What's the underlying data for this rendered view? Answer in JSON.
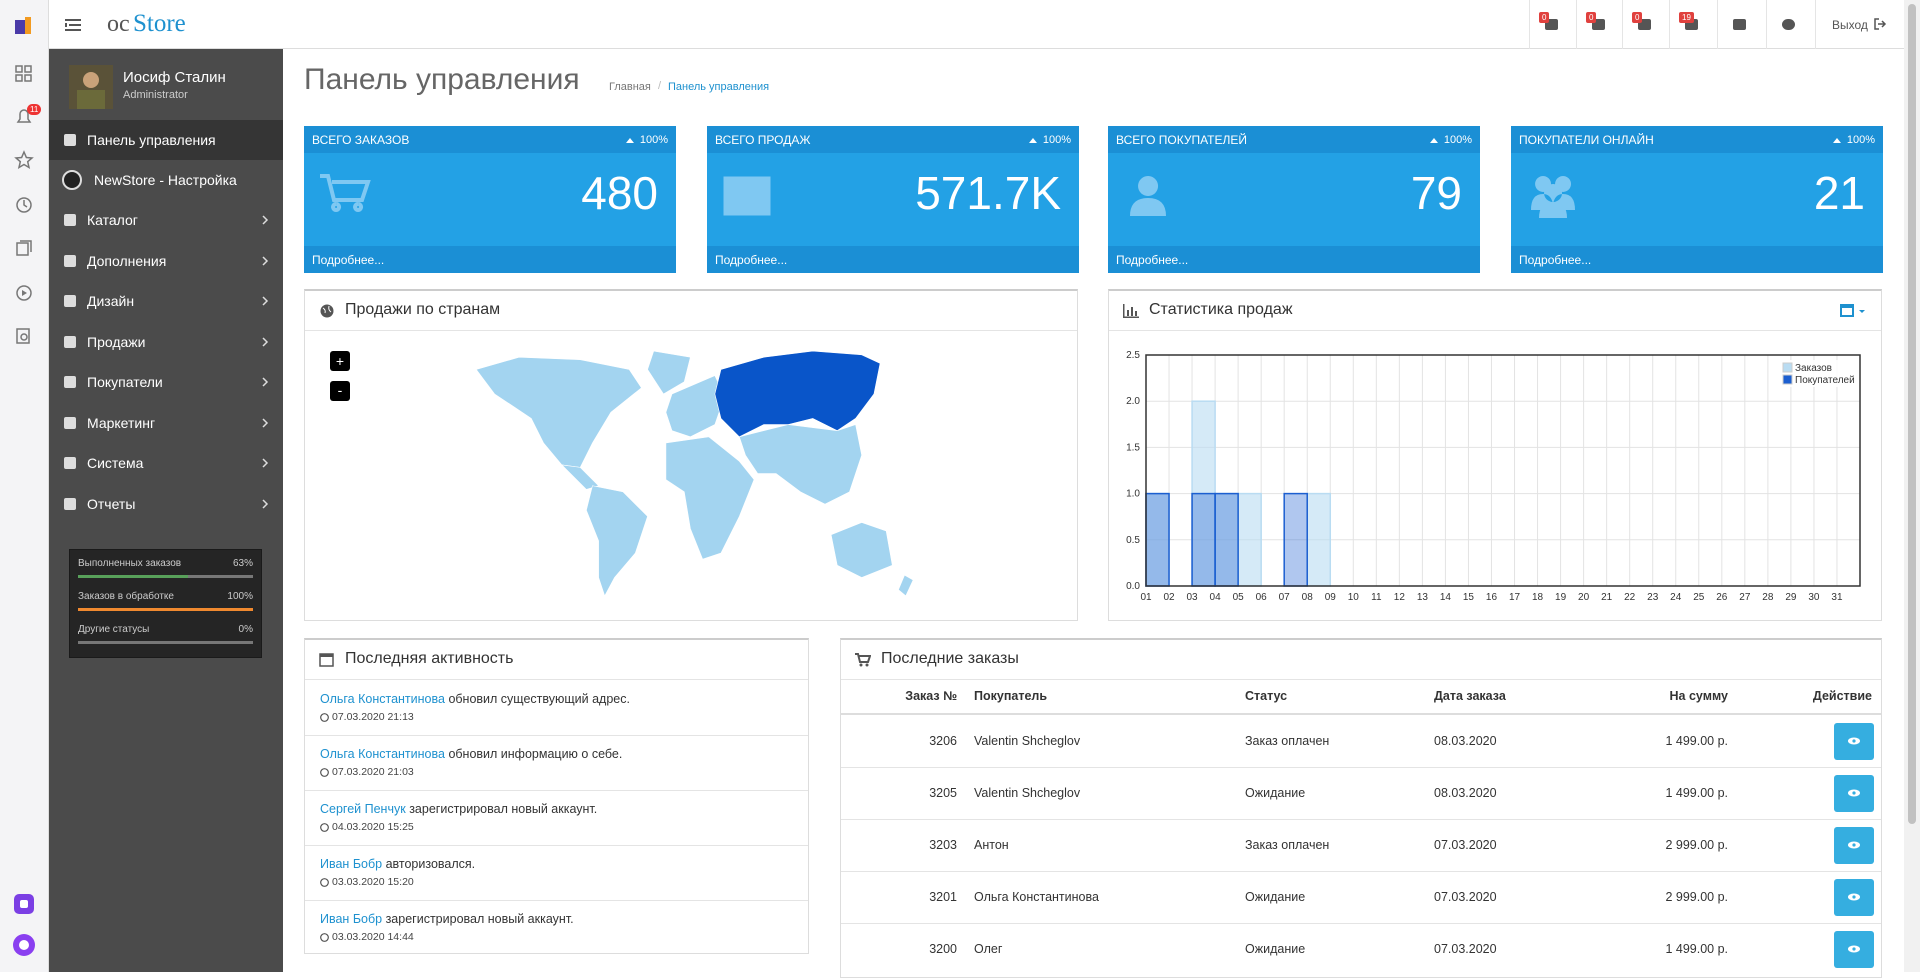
{
  "browser_sidebar": {
    "badge": "11"
  },
  "header": {
    "logo_prefix": "oc",
    "logo_name": "Store",
    "badges": [
      "0",
      "0",
      "0",
      "19"
    ],
    "logout": "Выход"
  },
  "user": {
    "name": "Иосиф Сталин",
    "role": "Administrator"
  },
  "menu": [
    "Панель управления",
    "NewStore - Настройка",
    "Каталог",
    "Дополнения",
    "Дизайн",
    "Продажи",
    "Покупатели",
    "Маркетинг",
    "Система",
    "Отчеты"
  ],
  "order_status": [
    {
      "label": "Выполненных заказов",
      "value": 63,
      "value_label": "63%"
    },
    {
      "label": "Заказов в обработке",
      "value": 100,
      "value_label": "100%"
    },
    {
      "label": "Другие статусы",
      "value": 0,
      "value_label": "0%"
    }
  ],
  "page": {
    "title": "Панель управления",
    "breadcrumb": [
      "Главная",
      "Панель управления"
    ]
  },
  "tiles": [
    {
      "title": "ВСЕГО ЗАКАЗОВ",
      "change": "100%",
      "value": "480",
      "link": "Подробнее..."
    },
    {
      "title": "ВСЕГО ПРОДАЖ",
      "change": "100%",
      "value": "571.7K",
      "link": "Подробнее..."
    },
    {
      "title": "ВСЕГО ПОКУПАТЕЛЕЙ",
      "change": "100%",
      "value": "79",
      "link": "Подробнее..."
    },
    {
      "title": "ПОКУПАТЕЛИ ОНЛАЙН",
      "change": "100%",
      "value": "21",
      "link": "Подробнее..."
    }
  ],
  "map": {
    "title": "Продажи по странам",
    "zoom_in": "+",
    "zoom_out": "-"
  },
  "chart_data": {
    "type": "bar",
    "title": "Статистика продаж",
    "categories": [
      "01",
      "02",
      "03",
      "04",
      "05",
      "06",
      "07",
      "08",
      "09",
      "10",
      "11",
      "12",
      "13",
      "14",
      "15",
      "16",
      "17",
      "18",
      "19",
      "20",
      "21",
      "22",
      "23",
      "24",
      "25",
      "26",
      "27",
      "28",
      "29",
      "30",
      "31"
    ],
    "series": [
      {
        "name": "Заказов",
        "color": "#b9dcf2",
        "values": [
          1,
          0,
          2,
          1,
          1,
          0,
          0,
          1,
          0,
          0,
          0,
          0,
          0,
          0,
          0,
          0,
          0,
          0,
          0,
          0,
          0,
          0,
          0,
          0,
          0,
          0,
          0,
          0,
          0,
          0,
          0
        ]
      },
      {
        "name": "Покупателей",
        "color": "#1c5fd0",
        "values": [
          1,
          0,
          1,
          1,
          0,
          0,
          1,
          0,
          0,
          0,
          0,
          0,
          0,
          0,
          0,
          0,
          0,
          0,
          0,
          0,
          0,
          0,
          0,
          0,
          0,
          0,
          0,
          0,
          0,
          0,
          0
        ]
      }
    ],
    "ylim": [
      0,
      2.5
    ],
    "yticks": [
      {
        "value": 0,
        "label": "0.0"
      },
      {
        "value": 0.5,
        "label": "0.5"
      },
      {
        "value": 1,
        "label": "1.0"
      },
      {
        "value": 1.5,
        "label": "1.5"
      },
      {
        "value": 2,
        "label": "2.0"
      },
      {
        "value": 2.5,
        "label": "2.5"
      }
    ],
    "grid": true,
    "legend": "top-right"
  },
  "activity": {
    "title": "Последняя активность",
    "items": [
      {
        "name": "Ольга Константинова",
        "text": "обновил существующий адрес.",
        "date": "07.03.2020 21:13"
      },
      {
        "name": "Ольга Константинова",
        "text": "обновил информацию о себе.",
        "date": "07.03.2020 21:03"
      },
      {
        "name": "Сергей Пенчук",
        "text": "зарегистрировал новый аккаунт.",
        "date": "04.03.2020 15:25"
      },
      {
        "name": "Иван Бобр",
        "text": "авторизовался.",
        "date": "03.03.2020 15:20"
      },
      {
        "name": "Иван Бобр",
        "text": "зарегистрировал новый аккаунт.",
        "date": "03.03.2020 14:44"
      }
    ]
  },
  "orders": {
    "title": "Последние заказы",
    "columns": [
      "Заказ №",
      "Покупатель",
      "Статус",
      "Дата заказа",
      "На сумму",
      "Действие"
    ],
    "rows": [
      [
        "3206",
        "Valentin Shcheglov",
        "Заказ оплачен",
        "08.03.2020",
        "1 499.00 р."
      ],
      [
        "3205",
        "Valentin Shcheglov",
        "Ожидание",
        "08.03.2020",
        "1 499.00 р."
      ],
      [
        "3203",
        "Антон",
        "Заказ оплачен",
        "07.03.2020",
        "2 999.00 р."
      ],
      [
        "3201",
        "Ольга Константинова",
        "Ожидание",
        "07.03.2020",
        "2 999.00 р."
      ],
      [
        "3200",
        "Олег",
        "Ожидание",
        "07.03.2020",
        "1 499.00 р."
      ]
    ]
  }
}
